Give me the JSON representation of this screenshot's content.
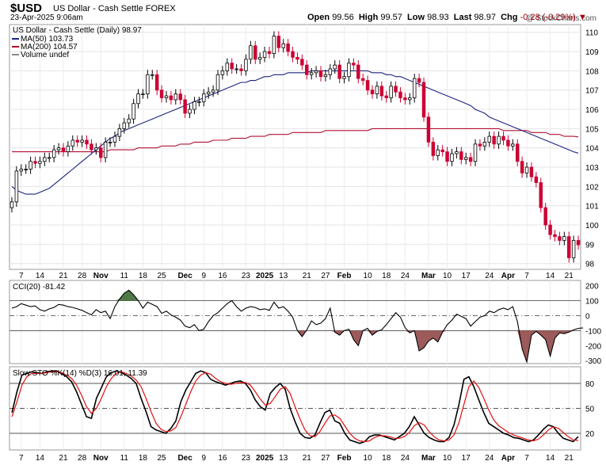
{
  "header": {
    "symbol": "$USD",
    "name": "US Dollar - Cash Settle FOREX",
    "date": "23-Apr-2025 9:06am",
    "watermark": "@ StockCharts.com",
    "open_label": "Open",
    "open": "99.56",
    "high_label": "High",
    "high": "99.57",
    "low_label": "Low",
    "low": "98.93",
    "last_label": "Last",
    "last": "98.97",
    "chg_label": "Chg",
    "chg": "-0.28 (-0.29%)"
  },
  "colors": {
    "up_candle": "#000000",
    "down_candle": "#cc0033",
    "ma50": "#1a237e",
    "ma200": "#b01030",
    "cci_pos_fill": "#4f7a45",
    "cci_neg_fill": "#9c5a5a",
    "sto_k": "#000000",
    "sto_d": "#e01010"
  },
  "chart_data": [
    {
      "type": "candlestick",
      "title": "US Dollar - Cash Settle (Daily) 98.97",
      "legend": [
        "MA(50) 103.73",
        "MA(200) 104.57",
        "Volume undef"
      ],
      "legend_placement": "top-left",
      "x_tick_labels": [
        "7",
        "14",
        "21",
        "28",
        "Nov",
        "11",
        "18",
        "25",
        "Dec",
        "9",
        "16",
        "23",
        "2025",
        "13",
        "21",
        "27",
        "Feb",
        "10",
        "18",
        "24",
        "Mar",
        "10",
        "17",
        "24",
        "Apr",
        "7",
        "14",
        "21"
      ],
      "y_ticks": [
        98,
        99,
        100,
        101,
        102,
        103,
        104,
        105,
        106,
        107,
        108,
        109,
        110
      ],
      "ylim": [
        97.7,
        110.4
      ],
      "close": [
        101.2,
        102.8,
        102.9,
        102.9,
        103.3,
        103.2,
        103.3,
        103.5,
        103.5,
        103.9,
        104.0,
        103.8,
        104.1,
        104.4,
        104.3,
        104.4,
        104.2,
        103.9,
        104.0,
        103.5,
        104.3,
        104.3,
        104.6,
        105.0,
        105.3,
        105.5,
        106.3,
        106.8,
        106.8,
        107.8,
        107.8,
        107.0,
        106.6,
        106.7,
        106.5,
        106.8,
        106.5,
        105.8,
        106.0,
        106.4,
        106.4,
        106.8,
        106.9,
        107.0,
        107.8,
        108.0,
        108.4,
        108.1,
        108.1,
        108.0,
        108.6,
        109.3,
        108.6,
        108.7,
        109.0,
        108.9,
        109.8,
        109.2,
        109.4,
        109.0,
        108.7,
        108.6,
        108.3,
        107.8,
        107.9,
        108.0,
        107.7,
        107.8,
        108.1,
        108.3,
        107.6,
        107.7,
        108.4,
        108.3,
        107.6,
        107.5,
        107.0,
        106.8,
        107.2,
        106.7,
        106.6,
        107.2,
        106.9,
        106.6,
        106.5,
        106.6,
        107.6,
        107.4,
        105.6,
        104.3,
        103.6,
        103.9,
        103.8,
        103.3,
        103.7,
        103.8,
        103.4,
        103.5,
        103.3,
        104.2,
        104.1,
        104.3,
        104.6,
        104.2,
        104.6,
        104.4,
        104.1,
        104.2,
        103.3,
        102.7,
        103.0,
        102.5,
        102.2,
        100.9,
        100.0,
        99.5,
        99.4,
        99.2,
        99.4,
        98.3,
        99.2,
        98.97
      ],
      "ma50": [
        102.0,
        101.8,
        101.7,
        101.6,
        101.6,
        101.6,
        101.7,
        101.8,
        101.9,
        102.1,
        102.3,
        102.5,
        102.7,
        102.9,
        103.1,
        103.3,
        103.5,
        103.7,
        103.9,
        104.1,
        104.3,
        104.5,
        104.6,
        104.8,
        104.9,
        105.0,
        105.1,
        105.2,
        105.3,
        105.4,
        105.5,
        105.6,
        105.7,
        105.8,
        105.9,
        106.0,
        106.1,
        106.2,
        106.3,
        106.4,
        106.5,
        106.6,
        106.7,
        106.8,
        106.9,
        107.0,
        107.1,
        107.2,
        107.3,
        107.4,
        107.4,
        107.5,
        107.5,
        107.6,
        107.7,
        107.7,
        107.8,
        107.8,
        107.8,
        107.9,
        107.9,
        107.9,
        107.9,
        107.9,
        108.0,
        108.0,
        108.0,
        108.0,
        108.0,
        108.0,
        108.0,
        108.0,
        108.0,
        108.0,
        108.0,
        108.0,
        108.0,
        107.9,
        107.9,
        107.9,
        107.8,
        107.8,
        107.7,
        107.7,
        107.6,
        107.5,
        107.4,
        107.3,
        107.2,
        107.1,
        107.0,
        106.9,
        106.8,
        106.7,
        106.6,
        106.5,
        106.4,
        106.3,
        106.2,
        106.0,
        105.9,
        105.8,
        105.6,
        105.5,
        105.4,
        105.3,
        105.2,
        105.1,
        105.0,
        104.9,
        104.8,
        104.7,
        104.6,
        104.5,
        104.4,
        104.3,
        104.2,
        104.1,
        104.0,
        103.9,
        103.8,
        103.73
      ],
      "ma200": [
        103.8,
        103.8,
        103.8,
        103.8,
        103.8,
        103.8,
        103.8,
        103.8,
        103.8,
        103.8,
        103.8,
        103.8,
        103.8,
        103.8,
        103.8,
        103.8,
        103.8,
        103.8,
        103.8,
        103.8,
        103.8,
        103.9,
        103.9,
        103.9,
        103.9,
        103.9,
        103.9,
        104.0,
        104.0,
        104.0,
        104.0,
        104.0,
        104.1,
        104.1,
        104.1,
        104.1,
        104.2,
        104.2,
        104.2,
        104.3,
        104.3,
        104.3,
        104.3,
        104.4,
        104.4,
        104.4,
        104.4,
        104.5,
        104.5,
        104.5,
        104.5,
        104.6,
        104.6,
        104.6,
        104.6,
        104.7,
        104.7,
        104.7,
        104.7,
        104.7,
        104.8,
        104.8,
        104.8,
        104.8,
        104.8,
        104.8,
        104.8,
        104.9,
        104.9,
        104.9,
        104.9,
        104.9,
        104.9,
        104.9,
        104.9,
        104.9,
        104.9,
        105.0,
        105.0,
        105.0,
        105.0,
        105.0,
        105.0,
        105.0,
        105.0,
        105.0,
        105.0,
        105.0,
        105.0,
        105.0,
        105.0,
        105.0,
        105.0,
        105.0,
        105.0,
        105.0,
        105.0,
        105.0,
        105.0,
        105.0,
        105.0,
        105.0,
        105.0,
        105.0,
        105.0,
        104.9,
        104.9,
        104.9,
        104.9,
        104.9,
        104.9,
        104.8,
        104.8,
        104.8,
        104.8,
        104.7,
        104.7,
        104.7,
        104.6,
        104.6,
        104.6,
        104.57
      ]
    },
    {
      "type": "area",
      "title": "CCI(20) -81.42",
      "y_ticks": [
        200,
        100,
        0,
        -100,
        -200,
        -300
      ],
      "ylim": [
        -320,
        235
      ],
      "reference_lines": [
        100,
        0,
        -100
      ],
      "values": [
        50,
        60,
        80,
        70,
        60,
        65,
        40,
        30,
        45,
        55,
        75,
        70,
        60,
        55,
        45,
        35,
        20,
        5,
        40,
        20,
        30,
        -20,
        60,
        110,
        150,
        170,
        140,
        100,
        50,
        90,
        75,
        60,
        15,
        30,
        5,
        -10,
        -30,
        -70,
        -80,
        -60,
        -100,
        -90,
        -40,
        0,
        20,
        50,
        80,
        100,
        60,
        30,
        50,
        60,
        55,
        40,
        45,
        35,
        90,
        50,
        60,
        30,
        -10,
        -100,
        -140,
        -95,
        -35,
        -60,
        -50,
        -20,
        50,
        -110,
        -130,
        -100,
        -90,
        -160,
        -200,
        -100,
        -85,
        -130,
        -105,
        -95,
        -60,
        -20,
        20,
        -10,
        -80,
        -115,
        -100,
        -235,
        -215,
        -170,
        -150,
        -175,
        -110,
        -60,
        -30,
        10,
        -5,
        -20,
        -70,
        -40,
        -10,
        0,
        30,
        20,
        40,
        50,
        40,
        60,
        -40,
        -220,
        -310,
        -130,
        -105,
        -130,
        -160,
        -270,
        -150,
        -115,
        -120,
        -110,
        -95,
        -85,
        -81.42
      ]
    },
    {
      "type": "line",
      "title": "Slow STO %K(14) %D(3) 16.01, 11.39",
      "y_ticks": [
        80,
        50,
        20
      ],
      "ylim": [
        0,
        100
      ],
      "reference_lines": [
        80,
        50,
        20
      ],
      "series": [
        {
          "name": "%K(14)",
          "values": [
            45,
            70,
            90,
            92,
            94,
            93,
            92,
            94,
            95,
            95,
            92,
            88,
            82,
            70,
            55,
            40,
            38,
            62,
            75,
            88,
            93,
            95,
            93,
            90,
            86,
            80,
            62,
            46,
            28,
            24,
            22,
            20,
            26,
            35,
            58,
            72,
            82,
            92,
            95,
            93,
            85,
            82,
            80,
            78,
            80,
            82,
            83,
            80,
            72,
            60,
            52,
            48,
            68,
            75,
            80,
            73,
            50,
            34,
            20,
            15,
            14,
            18,
            32,
            45,
            48,
            35,
            32,
            20,
            12,
            10,
            8,
            10,
            16,
            18,
            18,
            16,
            14,
            12,
            16,
            20,
            28,
            40,
            30,
            20,
            15,
            12,
            10,
            10,
            15,
            30,
            55,
            85,
            88,
            76,
            60,
            45,
            32,
            28,
            24,
            20,
            18,
            15,
            14,
            12,
            10,
            12,
            18,
            25,
            30,
            28,
            20,
            14,
            12,
            10,
            16.01
          ]
        },
        {
          "name": "%D(3)",
          "values": [
            40,
            58,
            78,
            88,
            92,
            92,
            92,
            93,
            94,
            94,
            93,
            90,
            86,
            78,
            66,
            52,
            44,
            50,
            62,
            76,
            86,
            92,
            94,
            92,
            89,
            84,
            76,
            62,
            46,
            32,
            25,
            22,
            23,
            27,
            40,
            55,
            70,
            83,
            90,
            93,
            91,
            86,
            82,
            80,
            79,
            80,
            81,
            81,
            78,
            70,
            61,
            54,
            56,
            64,
            73,
            76,
            68,
            52,
            37,
            24,
            17,
            16,
            22,
            32,
            41,
            42,
            38,
            29,
            20,
            14,
            11,
            10,
            11,
            15,
            17,
            17,
            16,
            14,
            14,
            16,
            21,
            29,
            33,
            30,
            22,
            16,
            12,
            11,
            12,
            18,
            33,
            55,
            76,
            83,
            75,
            62,
            48,
            36,
            29,
            25,
            21,
            18,
            16,
            14,
            12,
            11,
            13,
            18,
            24,
            28,
            26,
            21,
            16,
            12,
            11.39
          ]
        }
      ]
    }
  ],
  "cci_axis_labels": [
    "200",
    "100",
    "0",
    "-100",
    "-200",
    "-300"
  ],
  "sto_axis_labels": [
    "80",
    "50",
    "20"
  ]
}
